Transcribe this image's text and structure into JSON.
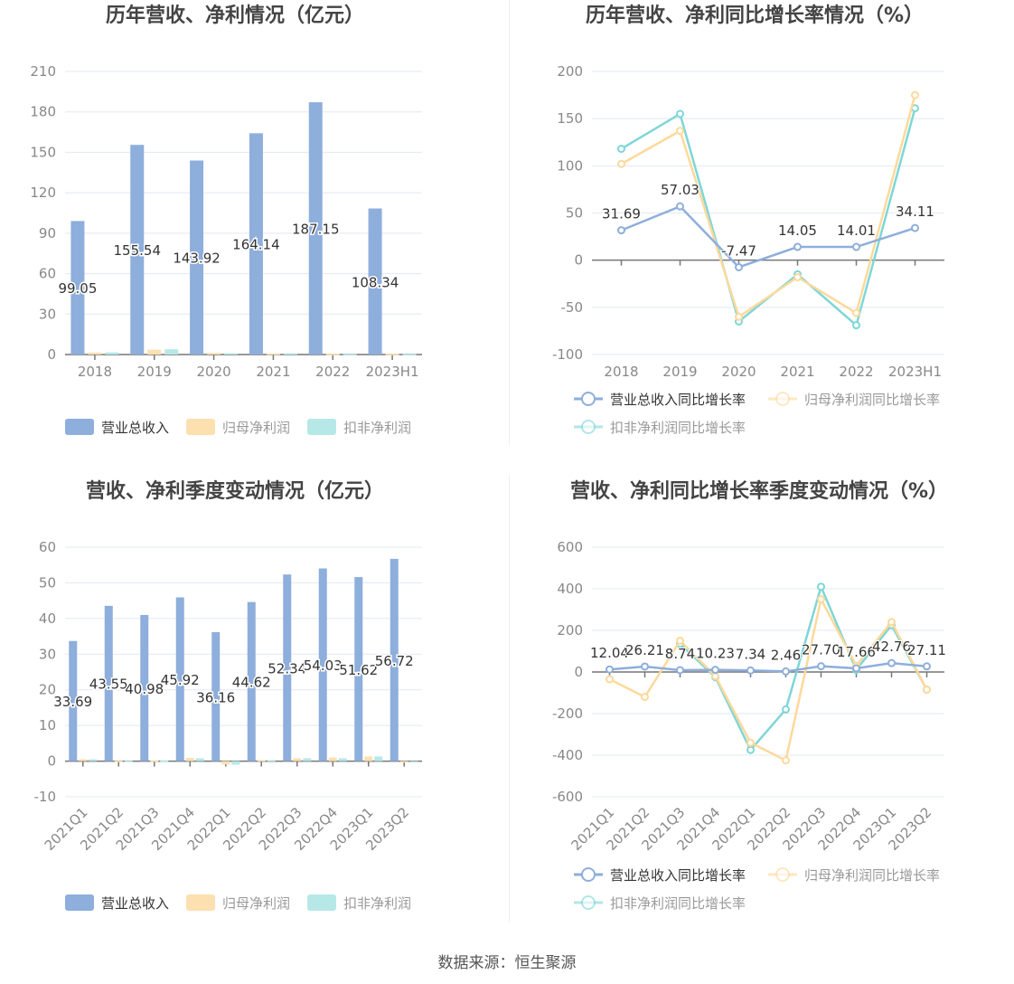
{
  "source": "数据来源：恒生聚源",
  "colors": {
    "revenue": "#8eaedc",
    "net": "#fde0b0",
    "deducted": "#b7e8e8",
    "revenue_line": "#8eaedc",
    "net_line": "#fdd99b",
    "deducted_line": "#7fd6d6"
  },
  "chart_data": [
    {
      "type": "bar",
      "title": "历年营收、净利情况（亿元）",
      "categories": [
        "2018",
        "2019",
        "2020",
        "2021",
        "2022",
        "2023H1"
      ],
      "ylim": [
        0,
        210
      ],
      "yticks": [
        0,
        30,
        60,
        90,
        120,
        150,
        180,
        210
      ],
      "series": [
        {
          "name": "营业总收入",
          "values": [
            99.05,
            155.54,
            143.92,
            164.14,
            187.15,
            108.34
          ],
          "labels": [
            "99.05",
            "155.54",
            "143.92",
            "164.14",
            "187.15",
            "108.34"
          ]
        },
        {
          "name": "归母净利润",
          "values": [
            1.5,
            3.6,
            1.2,
            0.8,
            0.5,
            0.5
          ]
        },
        {
          "name": "扣非净利润",
          "values": [
            1.6,
            3.9,
            1.0,
            0.9,
            0.3,
            0.3
          ]
        }
      ]
    },
    {
      "type": "line",
      "title": "历年营收、净利同比增长率情况（%）",
      "categories": [
        "2018",
        "2019",
        "2020",
        "2021",
        "2022",
        "2023H1"
      ],
      "ylim": [
        -100,
        200
      ],
      "yticks": [
        -100,
        -50,
        0,
        50,
        100,
        150,
        200
      ],
      "series": [
        {
          "name": "营业总收入同比增长率",
          "values": [
            31.69,
            57.03,
            -7.47,
            14.05,
            14.01,
            34.11
          ],
          "labels": [
            "31.69",
            "57.03",
            "-7.47",
            "14.05",
            "14.01",
            "34.11"
          ]
        },
        {
          "name": "归母净利润同比增长率",
          "values": [
            102,
            137,
            -60,
            -18,
            -56,
            175
          ]
        },
        {
          "name": "扣非净利润同比增长率",
          "values": [
            118,
            155,
            -65,
            -15,
            -69,
            161
          ]
        }
      ]
    },
    {
      "type": "bar",
      "title": "营收、净利季度变动情况（亿元）",
      "categories": [
        "2021Q1",
        "2021Q2",
        "2021Q3",
        "2021Q4",
        "2022Q1",
        "2022Q2",
        "2022Q3",
        "2022Q4",
        "2023Q1",
        "2023Q2"
      ],
      "ylim": [
        -10,
        60
      ],
      "yticks": [
        -10,
        0,
        10,
        20,
        30,
        40,
        50,
        60
      ],
      "series": [
        {
          "name": "营业总收入",
          "values": [
            33.69,
            43.55,
            40.98,
            45.92,
            36.16,
            44.62,
            52.34,
            54.03,
            51.62,
            56.72
          ],
          "labels": [
            "33.69",
            "43.55",
            "40.98",
            "45.92",
            "36.16",
            "44.62",
            "52.34",
            "54.03",
            "51.62",
            "56.72"
          ]
        },
        {
          "name": "归母净利润",
          "values": [
            0.5,
            0.1,
            0.2,
            0.9,
            -0.9,
            0.3,
            0.8,
            1.0,
            1.3,
            -0.4
          ]
        },
        {
          "name": "扣非净利润",
          "values": [
            0.5,
            0.1,
            0.2,
            0.8,
            -1.0,
            0.3,
            0.8,
            0.8,
            1.3,
            -0.3
          ]
        }
      ]
    },
    {
      "type": "line",
      "title": "营收、净利同比增长率季度变动情况（%）",
      "categories": [
        "2021Q1",
        "2021Q2",
        "2021Q3",
        "2021Q4",
        "2022Q1",
        "2022Q2",
        "2022Q3",
        "2022Q4",
        "2023Q1",
        "2023Q2"
      ],
      "ylim": [
        -600,
        600
      ],
      "yticks": [
        -600,
        -400,
        -200,
        0,
        200,
        400,
        600
      ],
      "series": [
        {
          "name": "营业总收入同比增长率",
          "values": [
            12.04,
            26.21,
            8.74,
            10.23,
            7.34,
            2.46,
            27.7,
            17.66,
            42.76,
            27.11
          ],
          "labels": [
            "12.04",
            "26.21",
            "8.74",
            "10.23",
            "7.34",
            "2.46",
            "27.70",
            "17.66",
            "42.76",
            "27.11"
          ]
        },
        {
          "name": "归母净利润同比增长率",
          "values": [
            -35,
            -120,
            150,
            -20,
            -340,
            -425,
            350,
            30,
            240,
            -85
          ]
        },
        {
          "name": "扣非净利润同比增长率",
          "values": [
            null,
            null,
            135,
            -25,
            -375,
            -180,
            410,
            10,
            225,
            -85
          ]
        }
      ]
    }
  ]
}
